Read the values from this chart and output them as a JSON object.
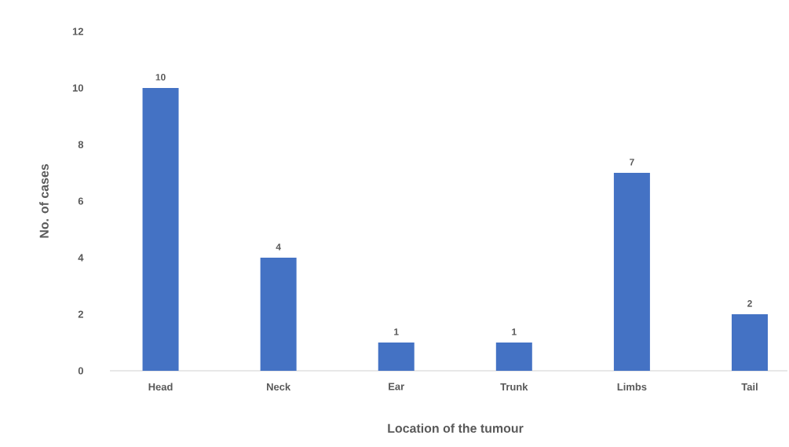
{
  "chart_data": {
    "type": "bar",
    "xlabel": "Location of the tumour",
    "ylabel": "No. of cases",
    "categories": [
      "Head",
      "Neck",
      "Ear",
      "Trunk",
      "Limbs",
      "Tail"
    ],
    "values": [
      10,
      4,
      1,
      1,
      7,
      2
    ],
    "color": "#4472c4",
    "ylim": [
      0,
      12
    ],
    "yticks": [
      0,
      2,
      4,
      6,
      8,
      10,
      12
    ],
    "data_labels": true
  }
}
